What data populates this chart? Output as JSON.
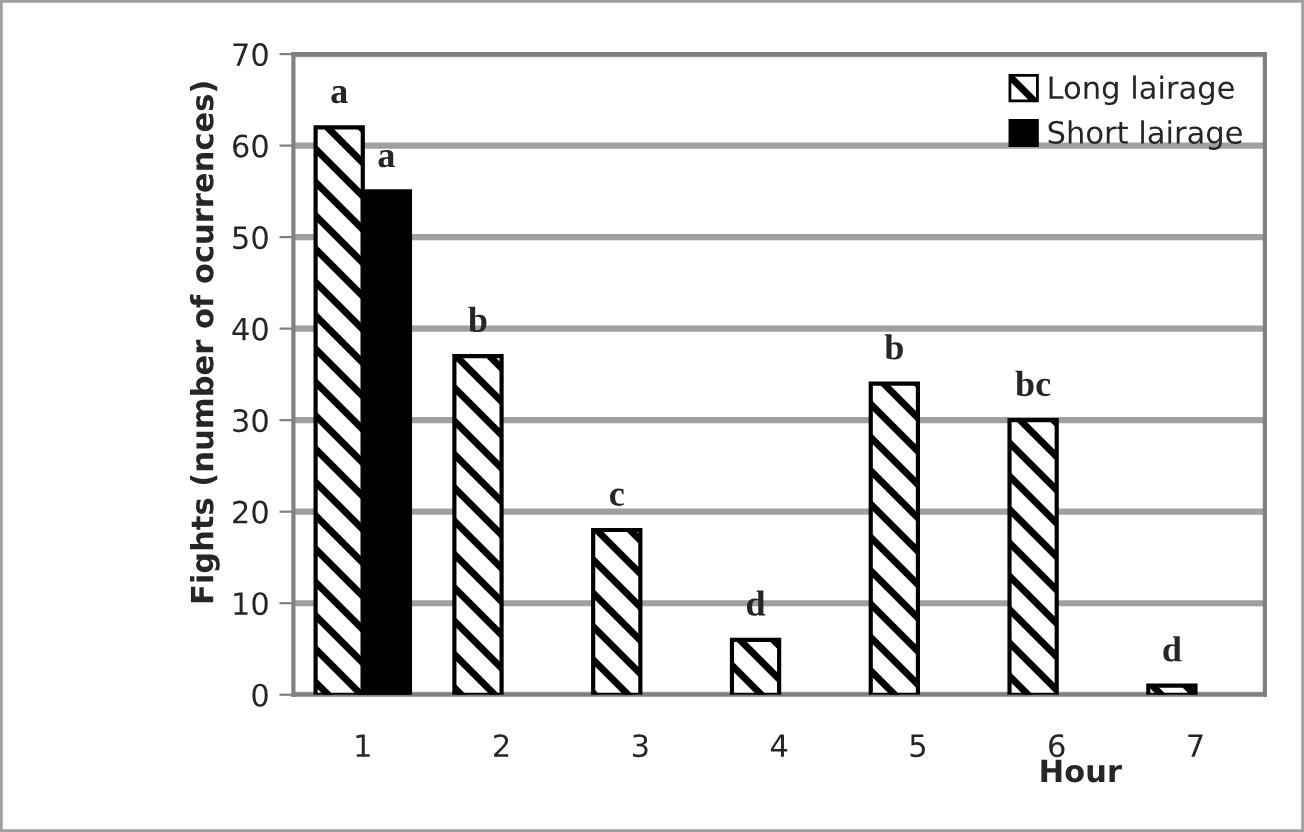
{
  "chart_data": {
    "type": "bar",
    "xlabel": "Hour",
    "ylabel": "Fights (number of ocurrences)",
    "categories": [
      "1",
      "2",
      "3",
      "4",
      "5",
      "6",
      "7"
    ],
    "series": [
      {
        "name": "Long lairage",
        "color": "#000000",
        "values": [
          62,
          37,
          18,
          6,
          34,
          30,
          1
        ]
      },
      {
        "name": "Short lairage",
        "color": "#000000",
        "values": [
          55,
          null,
          null,
          null,
          null,
          null,
          null
        ]
      }
    ],
    "ylim": [
      0,
      70
    ],
    "yticks": [
      0,
      10,
      20,
      30,
      40,
      50,
      60,
      70
    ],
    "grid": "y",
    "legend": "top right",
    "annotations": [
      {
        "text": "a",
        "x": "1",
        "y": 62
      },
      {
        "text": "a",
        "x": "1",
        "y": 55
      },
      {
        "text": "b",
        "x": "2",
        "y": 37
      },
      {
        "text": "c",
        "x": "3",
        "y": 18
      },
      {
        "text": "d",
        "x": "4",
        "y": 6
      },
      {
        "text": "b",
        "x": "5",
        "y": 34
      },
      {
        "text": "bc",
        "x": "6",
        "y": 30
      },
      {
        "text": "d",
        "x": "7",
        "y": 1
      }
    ]
  }
}
